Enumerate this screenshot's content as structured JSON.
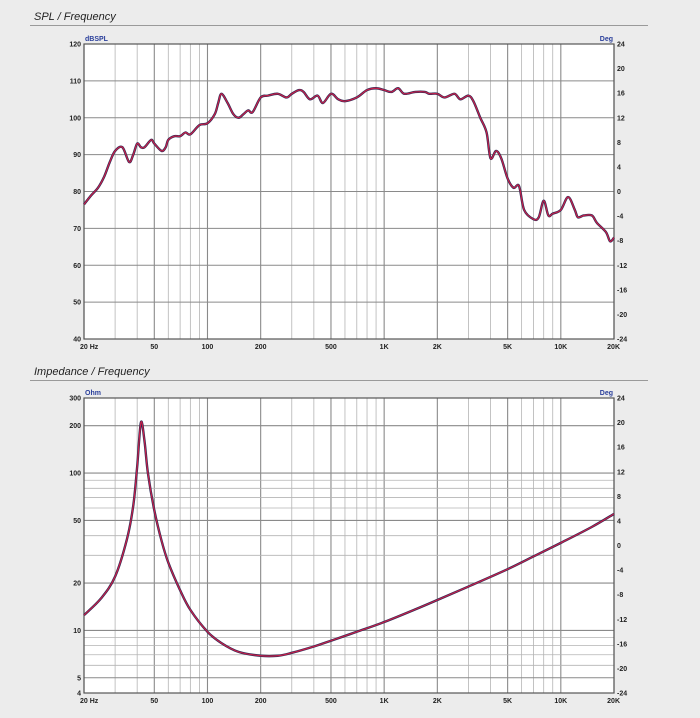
{
  "chart_data": [
    {
      "type": "line",
      "title": "SPL / Frequency",
      "x_scale": "log",
      "xlim": [
        20,
        20000
      ],
      "ylim": [
        40,
        120
      ],
      "y2lim": [
        -24,
        24
      ],
      "left_unit": "dBSPL",
      "right_unit": "Deg",
      "grid": true,
      "x_ticks": [
        {
          "v": 20,
          "label": "20 Hz"
        },
        {
          "v": 50,
          "label": "50"
        },
        {
          "v": 100,
          "label": "100"
        },
        {
          "v": 200,
          "label": "200"
        },
        {
          "v": 500,
          "label": "500"
        },
        {
          "v": 1000,
          "label": "1K"
        },
        {
          "v": 2000,
          "label": "2K"
        },
        {
          "v": 5000,
          "label": "5K"
        },
        {
          "v": 10000,
          "label": "10K"
        },
        {
          "v": 20000,
          "label": "20K"
        }
      ],
      "y_ticks": [
        {
          "v": 40,
          "label": "40"
        },
        {
          "v": 50,
          "label": "50"
        },
        {
          "v": 60,
          "label": "60"
        },
        {
          "v": 70,
          "label": "70"
        },
        {
          "v": 80,
          "label": "80"
        },
        {
          "v": 90,
          "label": "90"
        },
        {
          "v": 100,
          "label": "100"
        },
        {
          "v": 110,
          "label": "110"
        },
        {
          "v": 120,
          "label": "120"
        }
      ],
      "y2_ticks": [
        {
          "v": -24,
          "label": "-24"
        },
        {
          "v": -20,
          "label": "-20"
        },
        {
          "v": -16,
          "label": "-16"
        },
        {
          "v": -12,
          "label": "-12"
        },
        {
          "v": -8,
          "label": "-8"
        },
        {
          "v": -4,
          "label": "-4"
        },
        {
          "v": 0,
          "label": "0"
        },
        {
          "v": 4,
          "label": "4"
        },
        {
          "v": 8,
          "label": "8"
        },
        {
          "v": 12,
          "label": "12"
        },
        {
          "v": 16,
          "label": "16"
        },
        {
          "v": 20,
          "label": "20"
        },
        {
          "v": 24,
          "label": "24"
        }
      ],
      "series": [
        {
          "x": [
            20,
            22,
            24,
            26,
            28,
            30,
            33,
            36,
            38,
            40,
            42,
            44,
            48,
            50,
            55,
            58,
            60,
            65,
            70,
            75,
            80,
            90,
            100,
            110,
            115,
            120,
            130,
            140,
            150,
            160,
            170,
            180,
            200,
            220,
            250,
            280,
            300,
            330,
            350,
            380,
            420,
            450,
            500,
            550,
            600,
            700,
            800,
            900,
            1000,
            1100,
            1200,
            1300,
            1500,
            1700,
            1800,
            2000,
            2200,
            2500,
            2700,
            3000,
            3200,
            3500,
            3800,
            4000,
            4300,
            4600,
            5000,
            5400,
            5800,
            6200,
            7000,
            7500,
            8000,
            8500,
            9000,
            10000,
            11000,
            12000,
            12500,
            13500,
            15000,
            16000,
            18000,
            19000,
            20000
          ],
          "y": [
            76.5,
            79,
            81,
            84,
            88,
            91,
            92,
            88,
            90,
            93,
            92,
            92,
            94,
            93,
            91,
            92,
            94,
            95,
            95,
            96,
            95.5,
            98,
            98.5,
            101,
            104,
            106.5,
            104,
            101,
            100,
            101,
            102,
            101.5,
            105.5,
            106,
            106.5,
            105.5,
            106.5,
            107.5,
            107,
            105,
            106,
            104,
            106.5,
            105,
            104.5,
            105.5,
            107.5,
            108,
            107.5,
            107,
            108,
            106.5,
            107,
            107,
            106.5,
            106.5,
            105.5,
            106.5,
            105,
            106,
            104.5,
            100,
            96,
            89,
            91,
            89,
            83.5,
            81,
            81.5,
            75,
            72.5,
            73,
            77.5,
            73.5,
            74,
            75,
            78.5,
            75,
            73,
            73.5,
            73.5,
            71.5,
            69,
            66.5,
            67.5
          ]
        }
      ]
    },
    {
      "type": "line",
      "title": "Impedance / Frequency",
      "x_scale": "log",
      "y_scale": "log",
      "xlim": [
        20,
        20000
      ],
      "ylim": [
        4,
        300
      ],
      "y2lim": [
        -24,
        24
      ],
      "left_unit": "Ohm",
      "right_unit": "Deg",
      "grid": true,
      "x_ticks": [
        {
          "v": 20,
          "label": "20 Hz"
        },
        {
          "v": 50,
          "label": "50"
        },
        {
          "v": 100,
          "label": "100"
        },
        {
          "v": 200,
          "label": "200"
        },
        {
          "v": 500,
          "label": "500"
        },
        {
          "v": 1000,
          "label": "1K"
        },
        {
          "v": 2000,
          "label": "2K"
        },
        {
          "v": 5000,
          "label": "5K"
        },
        {
          "v": 10000,
          "label": "10K"
        },
        {
          "v": 20000,
          "label": "20K"
        }
      ],
      "y_ticks": [
        {
          "v": 4,
          "label": "4"
        },
        {
          "v": 5,
          "label": "5"
        },
        {
          "v": 10,
          "label": "10"
        },
        {
          "v": 20,
          "label": "20"
        },
        {
          "v": 50,
          "label": "50"
        },
        {
          "v": 100,
          "label": "100"
        },
        {
          "v": 200,
          "label": "200"
        },
        {
          "v": 300,
          "label": "300"
        }
      ],
      "y2_ticks": [
        {
          "v": -24,
          "label": "-24"
        },
        {
          "v": -20,
          "label": "-20"
        },
        {
          "v": -16,
          "label": "-16"
        },
        {
          "v": -12,
          "label": "-12"
        },
        {
          "v": -8,
          "label": "-8"
        },
        {
          "v": -4,
          "label": "-4"
        },
        {
          "v": 0,
          "label": "0"
        },
        {
          "v": 4,
          "label": "4"
        },
        {
          "v": 8,
          "label": "8"
        },
        {
          "v": 12,
          "label": "12"
        },
        {
          "v": 16,
          "label": "16"
        },
        {
          "v": 20,
          "label": "20"
        },
        {
          "v": 24,
          "label": "24"
        }
      ],
      "series": [
        {
          "x": [
            20,
            25,
            30,
            35,
            38,
            40,
            42,
            44,
            46,
            50,
            55,
            60,
            70,
            80,
            100,
            120,
            150,
            200,
            250,
            300,
            400,
            500,
            700,
            1000,
            1500,
            2000,
            3000,
            5000,
            7000,
            10000,
            15000,
            20000
          ],
          "y": [
            12.5,
            16,
            22,
            38,
            62,
            110,
            210,
            160,
            100,
            58,
            37,
            27,
            18,
            13.5,
            9.8,
            8.3,
            7.3,
            6.9,
            6.9,
            7.2,
            7.9,
            8.6,
            9.8,
            11.3,
            13.6,
            15.6,
            19,
            24.5,
            29.5,
            36,
            45.5,
            55
          ]
        }
      ]
    }
  ]
}
